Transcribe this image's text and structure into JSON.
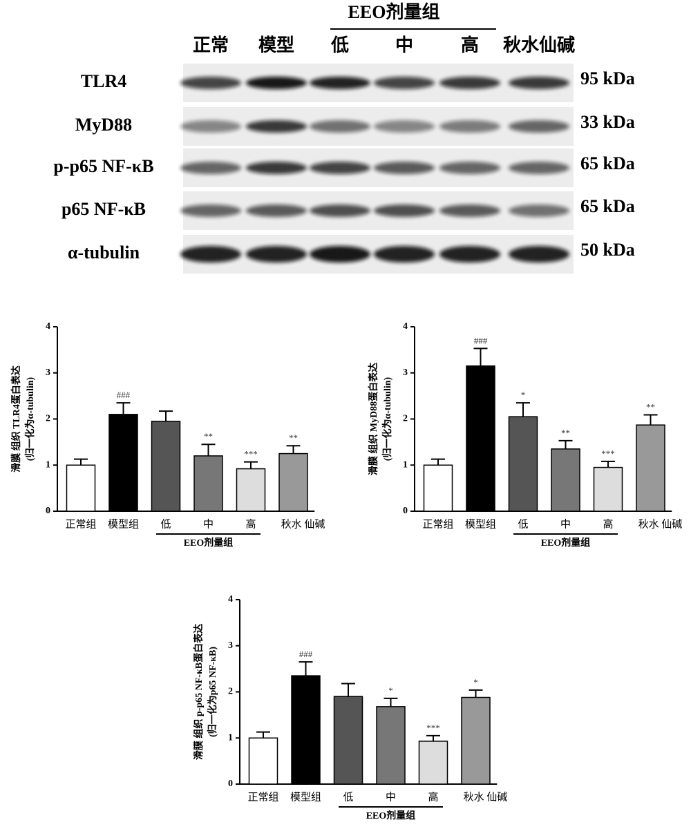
{
  "blot": {
    "group_label": "EEO剂量组",
    "lanes": [
      "正常",
      "模型",
      "低",
      "中",
      "高",
      "秋水仙碱"
    ],
    "rows": [
      {
        "name": "TLR4",
        "size": "95 kDa"
      },
      {
        "name": "MyD88",
        "size": "33 kDa"
      },
      {
        "name": "p-p65 NF-κB",
        "size": "65 kDa"
      },
      {
        "name": "p65 NF-κB",
        "size": "65 kDa"
      },
      {
        "name": "α-tubulin",
        "size": "50 kDa"
      }
    ]
  },
  "chart_data": [
    {
      "type": "bar",
      "ylabel": [
        "滑膜 组织 TLR4蛋白表达",
        "(归一化为α-tubulin)"
      ],
      "group_label": "EEO剂量组",
      "categories": [
        "正常组",
        "模型组",
        "低",
        "中",
        "高",
        "秋水 仙碱"
      ],
      "values": [
        1.0,
        2.1,
        1.95,
        1.2,
        0.92,
        1.25
      ],
      "errors": [
        0.13,
        0.25,
        0.22,
        0.25,
        0.15,
        0.17
      ],
      "annotations": [
        null,
        "###",
        null,
        "**",
        "***",
        "**"
      ],
      "colors": [
        "#ffffff",
        "#000000",
        "#555555",
        "#777777",
        "#dddddd",
        "#999999"
      ],
      "ylim": [
        0,
        4
      ],
      "yticks": [
        0,
        1,
        2,
        3,
        4
      ]
    },
    {
      "type": "bar",
      "ylabel": [
        "滑膜 组织 MyD88蛋白表达",
        "(归一化为α-tubulin)"
      ],
      "group_label": "EEO剂量组",
      "categories": [
        "正常组",
        "模型组",
        "低",
        "中",
        "高",
        "秋水 仙碱"
      ],
      "values": [
        1.0,
        3.15,
        2.05,
        1.35,
        0.95,
        1.87
      ],
      "errors": [
        0.13,
        0.38,
        0.3,
        0.18,
        0.13,
        0.22
      ],
      "annotations": [
        null,
        "###",
        "*",
        "**",
        "***",
        "**"
      ],
      "colors": [
        "#ffffff",
        "#000000",
        "#555555",
        "#777777",
        "#dddddd",
        "#999999"
      ],
      "ylim": [
        0,
        4
      ],
      "yticks": [
        0,
        1,
        2,
        3,
        4
      ]
    },
    {
      "type": "bar",
      "ylabel": [
        "滑膜 组织 p-p65 NF-κB蛋白表达",
        "(归一化为p65 NF-κB)"
      ],
      "group_label": "EEO剂量组",
      "categories": [
        "正常组",
        "模型组",
        "低",
        "中",
        "高",
        "秋水 仙碱"
      ],
      "values": [
        1.0,
        2.35,
        1.9,
        1.68,
        0.93,
        1.88
      ],
      "errors": [
        0.13,
        0.3,
        0.28,
        0.18,
        0.12,
        0.16
      ],
      "annotations": [
        null,
        "###",
        null,
        "*",
        "***",
        "*"
      ],
      "colors": [
        "#ffffff",
        "#000000",
        "#555555",
        "#777777",
        "#dddddd",
        "#999999"
      ],
      "ylim": [
        0,
        4
      ],
      "yticks": [
        0,
        1,
        2,
        3,
        4
      ]
    }
  ]
}
